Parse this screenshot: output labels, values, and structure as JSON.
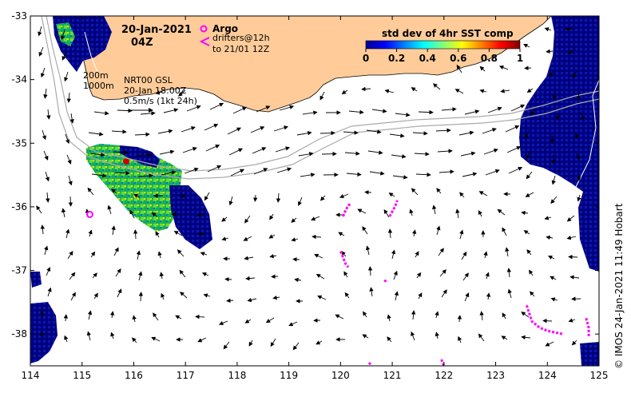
{
  "header": {
    "date": "20-Jan-2021",
    "time": "04Z"
  },
  "legend": {
    "argo_label": "Argo",
    "drifter_label_1": "drifters@12h",
    "drifter_label_2": "to 21/01 12Z",
    "argo_color": "#ff00ff",
    "drifter_color": "#ff00ff"
  },
  "colorbar": {
    "title": "std dev of 4hr SST comp",
    "ticks": [
      "0",
      "0.2",
      "0.4",
      "0.6",
      "0.8",
      "1"
    ],
    "range": [
      0,
      1
    ],
    "colormap": "jet"
  },
  "annotations": {
    "isobath_1": "200m",
    "isobath_2": "1000m",
    "model_line_1": "NRT00 GSL",
    "model_line_2": "20-Jan 18:00Z",
    "model_line_3": "0.5m/s (1kt 24h)"
  },
  "credit": "© IMOS 24-Jan-2021 11:49 Hobart",
  "colors": {
    "land": "#ffcc99",
    "low_variance": "#00008b",
    "mid_variance": "#33cc33",
    "high_variance": "#ffdd00",
    "peak_variance": "#cc0000",
    "bathymetry": "#aaaaaa",
    "arrows": "#000000"
  },
  "axes": {
    "x_ticks": [
      "114",
      "115",
      "116",
      "117",
      "118",
      "119",
      "120",
      "121",
      "122",
      "123",
      "124",
      "125"
    ],
    "y_ticks": [
      "-33",
      "-34",
      "-35",
      "-36",
      "-37",
      "-38"
    ],
    "xlim": [
      114,
      125
    ],
    "ylim": [
      -38.5,
      -33
    ]
  },
  "argo_floats": [
    {
      "lon": 115.15,
      "lat": -36.12
    }
  ],
  "drifter_tracks": [
    [
      [
        120.05,
        -36.15
      ],
      [
        120.1,
        -36.05
      ],
      [
        120.15,
        -35.98
      ],
      [
        120.2,
        -35.95
      ]
    ],
    [
      [
        120.95,
        -36.15
      ],
      [
        121.05,
        -36.0
      ],
      [
        121.1,
        -35.9
      ]
    ],
    [
      [
        120.0,
        -36.7
      ],
      [
        120.05,
        -36.8
      ],
      [
        120.1,
        -36.9
      ],
      [
        120.15,
        -36.95
      ]
    ],
    [
      [
        120.85,
        -37.15
      ],
      [
        120.9,
        -37.2
      ]
    ],
    [
      [
        123.6,
        -37.55
      ],
      [
        123.7,
        -37.8
      ],
      [
        123.85,
        -37.9
      ],
      [
        124.0,
        -37.95
      ],
      [
        124.3,
        -38.0
      ]
    ],
    [
      [
        124.75,
        -37.75
      ],
      [
        124.8,
        -37.9
      ],
      [
        124.8,
        -38.05
      ]
    ],
    [
      [
        121.95,
        -38.4
      ],
      [
        122.0,
        -38.5
      ]
    ],
    [
      [
        120.55,
        -38.45
      ],
      [
        120.6,
        -38.5
      ]
    ]
  ]
}
